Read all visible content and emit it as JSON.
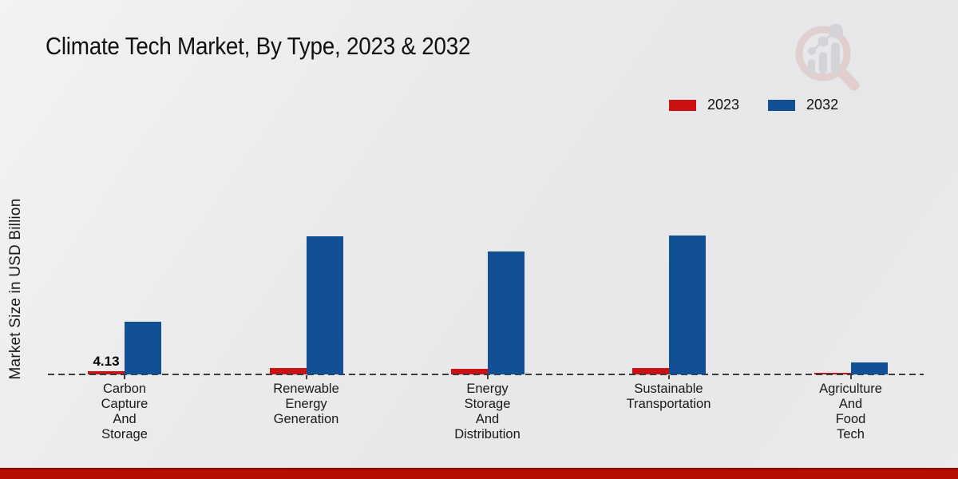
{
  "page": {
    "title": "Climate Tech Market, By Type, 2023 & 2032",
    "ylabel": "Market Size in USD Billion"
  },
  "chart_data": {
    "type": "bar",
    "title": "Climate Tech Market, By Type, 2023 & 2032",
    "xlabel": "",
    "ylabel": "Market Size in USD Billion",
    "ylim": [
      0,
      185
    ],
    "grid": false,
    "legend_position": "top-right",
    "baseline_style": "dashed",
    "categories": [
      "Carbon Capture And Storage",
      "Renewable Energy Generation",
      "Energy Storage And Distribution",
      "Sustainable Transportation",
      "Agriculture And Food Tech"
    ],
    "category_label_lines": [
      [
        "Carbon",
        "Capture",
        "And",
        "Storage"
      ],
      [
        "Renewable",
        "Energy",
        "Generation"
      ],
      [
        "Energy",
        "Storage",
        "And",
        "Distribution"
      ],
      [
        "Sustainable",
        "Transportation"
      ],
      [
        "Agriculture",
        "And",
        "Food",
        "Tech"
      ]
    ],
    "series": [
      {
        "name": "2023",
        "color": "#cc1111",
        "values": [
          4.13,
          8.3,
          7.2,
          8.4,
          2.1
        ]
      },
      {
        "name": "2032",
        "color": "#134f95",
        "values": [
          68.1,
          178.6,
          159.0,
          179.7,
          15.5
        ]
      }
    ],
    "annotations": [
      {
        "text": "4.13",
        "category_index": 0,
        "series_index": 0
      }
    ],
    "colors": {
      "accent_red": "#cc1111",
      "accent_blue": "#134f95",
      "baseline": "#3d3d3d",
      "bottom_band": "#b50d02"
    }
  }
}
